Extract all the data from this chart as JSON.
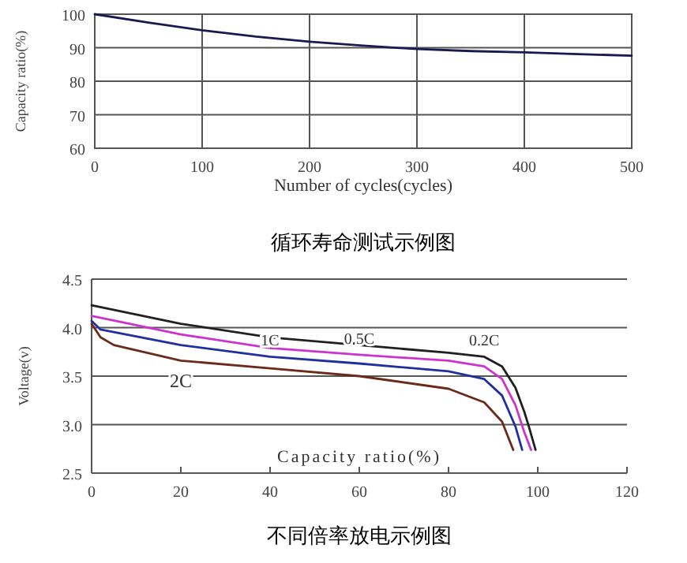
{
  "chart_data": [
    {
      "type": "line",
      "title": "循环寿命测试示例图",
      "xlabel": "Number of cycles(cycles)",
      "ylabel": "Capacity ratio(%)",
      "x": [
        0,
        50,
        100,
        150,
        200,
        250,
        300,
        350,
        400,
        450,
        500
      ],
      "series": [
        {
          "color": "#1a1a50",
          "values": [
            100,
            97.5,
            95.2,
            93.3,
            91.8,
            90.6,
            89.6,
            89.0,
            88.6,
            88.1,
            87.6
          ]
        }
      ],
      "xlim": [
        0,
        500
      ],
      "xticks": [
        0,
        100,
        200,
        300,
        400,
        500
      ],
      "ylim": [
        60,
        100
      ],
      "yticks": [
        60,
        70,
        80,
        90,
        100
      ],
      "grid": true,
      "marker": "none",
      "line_style": "solid"
    },
    {
      "type": "line",
      "title": "不同倍率放电示例图",
      "xlabel": "Capacity ratio(%)",
      "ylabel": "Voltage(v)",
      "series": [
        {
          "name": "0.2C",
          "color": "#202020",
          "x": [
            0,
            20,
            40,
            60,
            80,
            88,
            92,
            95,
            97,
            98,
            99.5
          ],
          "values": [
            4.23,
            4.04,
            3.9,
            3.82,
            3.74,
            3.7,
            3.6,
            3.38,
            3.13,
            2.98,
            2.74
          ]
        },
        {
          "name": "0.5C",
          "color": "#cc33cc",
          "x": [
            0,
            20,
            40,
            60,
            80,
            88,
            92,
            95,
            97,
            98.5
          ],
          "values": [
            4.12,
            3.93,
            3.79,
            3.72,
            3.66,
            3.6,
            3.47,
            3.2,
            2.92,
            2.74
          ]
        },
        {
          "name": "1C",
          "color": "#1f2fa0",
          "x": [
            0,
            2,
            20,
            40,
            60,
            80,
            88,
            92,
            95,
            96.5
          ],
          "values": [
            4.07,
            3.98,
            3.82,
            3.7,
            3.63,
            3.55,
            3.47,
            3.3,
            2.98,
            2.74
          ]
        },
        {
          "name": "2C",
          "color": "#6b2a1a",
          "x": [
            0,
            2,
            5,
            20,
            40,
            60,
            80,
            88,
            92,
            94.5
          ],
          "values": [
            4.04,
            3.9,
            3.82,
            3.66,
            3.58,
            3.5,
            3.37,
            3.23,
            3.03,
            2.74
          ]
        }
      ],
      "xlim": [
        0,
        120
      ],
      "xticks": [
        0,
        20,
        40,
        60,
        80,
        100,
        120
      ],
      "ylim": [
        2.5,
        4.5
      ],
      "yticks": [
        {
          "value": 2.5,
          "label": "2.5"
        },
        {
          "value": 3,
          "label": "3.0"
        },
        {
          "value": 3.5,
          "label": "3.5"
        },
        {
          "value": 4,
          "label": "4.0"
        },
        {
          "value": 4.5,
          "label": "4.5"
        }
      ],
      "grid": "y",
      "marker": "none",
      "line_style": "solid"
    }
  ]
}
